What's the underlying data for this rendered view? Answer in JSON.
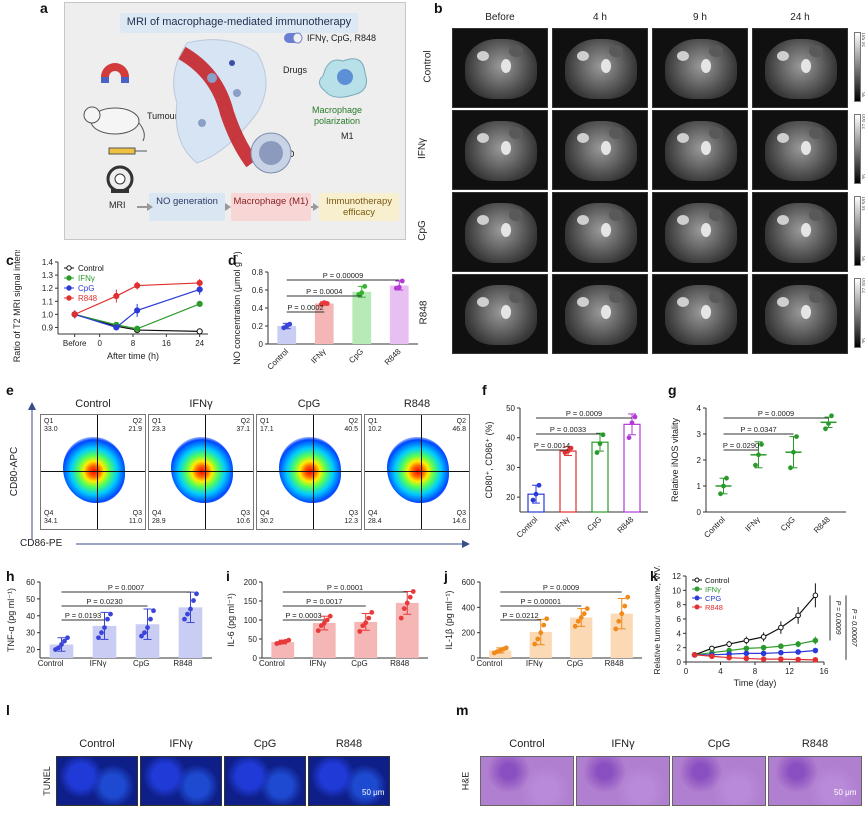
{
  "panel_labels": {
    "a": "a",
    "b": "b",
    "c": "c",
    "d": "d",
    "e": "e",
    "f": "f",
    "g": "g",
    "h": "h",
    "i": "i",
    "j": "j",
    "k": "k",
    "l": "l",
    "m": "m"
  },
  "panel_a": {
    "title": "MRI of macrophage-mediated immunotherapy",
    "drugs_label": "Drugs",
    "drugs_list": "IFNγ, CpG, R848",
    "tumour_label": "Tumour",
    "polarization_label": "Macrophage polarization",
    "m1_label": "M1",
    "no_label": "NO",
    "mri_label": "MRI",
    "box_no": "NO generation",
    "box_macrophage": "Macrophage (M1)",
    "box_immuno": "Immunotherapy efficacy",
    "colors": {
      "box_no": "#dbe6f3",
      "box_macrophage": "#f8d6d6",
      "box_immuno": "#f8efce",
      "title_box": "#dce9f4"
    }
  },
  "panel_b": {
    "columns": [
      "Before",
      "4 h",
      "9 h",
      "24 h"
    ],
    "rows": [
      "Control",
      "IFNγ",
      "CpG",
      "R848"
    ],
    "colorbar_labels": [
      "26,581",
      "27,000",
      "16,581",
      "27,000"
    ],
    "colorbar_bottom_labels": [
      "35",
      "35",
      "35",
      "35"
    ]
  },
  "chart_data": [
    {
      "id": "c",
      "type": "line",
      "title": "",
      "ylabel": "Ratio of T2 MRI signal intensity",
      "xlabel": "After time (h)",
      "x_tick_labels": [
        "Before",
        "0",
        "8",
        "16",
        "24"
      ],
      "ylim": [
        0.85,
        1.4
      ],
      "y_ticks": [
        0.9,
        1.0,
        1.1,
        1.2,
        1.3,
        1.4
      ],
      "x": [
        -6,
        4,
        9,
        24
      ],
      "series": [
        {
          "name": "Control",
          "color": "#111111",
          "values": [
            1.0,
            0.91,
            0.88,
            0.87
          ],
          "err": [
            0.03,
            0.02,
            0.02,
            0.01
          ]
        },
        {
          "name": "IFNγ",
          "color": "#2a9b2a",
          "values": [
            1.0,
            0.92,
            0.89,
            1.08
          ],
          "err": [
            0.03,
            0.02,
            0.02,
            0.01
          ]
        },
        {
          "name": "CpG",
          "color": "#2c3ad6",
          "values": [
            1.0,
            0.9,
            1.03,
            1.19
          ],
          "err": [
            0.03,
            0.02,
            0.05,
            0.04
          ]
        },
        {
          "name": "R848",
          "color": "#e03030",
          "values": [
            1.0,
            1.14,
            1.22,
            1.24
          ],
          "err": [
            0.03,
            0.05,
            0.03,
            0.03
          ]
        }
      ]
    },
    {
      "id": "d",
      "type": "bar",
      "ylabel": "NO concentration (μmol g⁻¹)",
      "categories": [
        "Control",
        "IFNγ",
        "CpG",
        "R848"
      ],
      "values": [
        0.2,
        0.45,
        0.58,
        0.65
      ],
      "err": [
        0.03,
        0.02,
        0.06,
        0.05
      ],
      "points": [
        [
          0.18,
          0.2,
          0.22
        ],
        [
          0.44,
          0.46,
          0.45
        ],
        [
          0.55,
          0.57,
          0.64
        ],
        [
          0.62,
          0.63,
          0.7
        ]
      ],
      "colors": [
        "#c9cdf3",
        "#f5b6b6",
        "#b7eab7",
        "#e8bff3"
      ],
      "dot_colors": [
        "#3a45d8",
        "#e83a3a",
        "#31b531",
        "#b43ad6"
      ],
      "ylim": [
        0,
        0.8
      ],
      "y_ticks": [
        0,
        0.2,
        0.4,
        0.6,
        0.8
      ],
      "significance": [
        {
          "from": 0,
          "to": 1,
          "label": "P = 0.0002"
        },
        {
          "from": 0,
          "to": 2,
          "label": "P = 0.0004"
        },
        {
          "from": 0,
          "to": 3,
          "label": "P = 0.00009"
        }
      ]
    },
    {
      "id": "f",
      "type": "bar",
      "ylabel": "CD80⁺, CD86⁺ (%)",
      "categories": [
        "Control",
        "IFNγ",
        "CpG",
        "R848"
      ],
      "values": [
        21,
        35.5,
        38.5,
        44.5
      ],
      "err": [
        3,
        1.5,
        3,
        3.5
      ],
      "points": [
        [
          19,
          21,
          24
        ],
        [
          35,
          35.5,
          36.5
        ],
        [
          35,
          38,
          41
        ],
        [
          40,
          45,
          47
        ]
      ],
      "colors": [
        "#ffffff",
        "#ffffff",
        "#ffffff",
        "#ffffff"
      ],
      "edge_colors": [
        "#2c3ad6",
        "#e03030",
        "#2a9b2a",
        "#b43ad6"
      ],
      "dot_colors": [
        "#2c3ad6",
        "#e03030",
        "#2a9b2a",
        "#b43ad6"
      ],
      "ylim": [
        15,
        50
      ],
      "y_ticks": [
        20,
        30,
        40,
        50
      ],
      "significance": [
        {
          "from": 0,
          "to": 1,
          "label": "P = 0.0014"
        },
        {
          "from": 0,
          "to": 2,
          "label": "P = 0.0033"
        },
        {
          "from": 0,
          "to": 3,
          "label": "P = 0.0009"
        }
      ]
    },
    {
      "id": "g",
      "type": "scatter",
      "ylabel": "Relative iNOS vitality",
      "categories": [
        "Control",
        "IFNγ",
        "CpG",
        "R848"
      ],
      "values": [
        1.0,
        2.2,
        2.3,
        3.45
      ],
      "err": [
        0.3,
        0.5,
        0.6,
        0.2
      ],
      "points": [
        [
          0.7,
          1.0,
          1.3
        ],
        [
          1.8,
          2.2,
          2.6
        ],
        [
          1.7,
          2.3,
          2.9
        ],
        [
          3.2,
          3.4,
          3.7
        ]
      ],
      "dot_colors": [
        "#2a9b2a",
        "#2a9b2a",
        "#2a9b2a",
        "#2a9b2a"
      ],
      "ylim": [
        0,
        4
      ],
      "y_ticks": [
        0,
        1,
        2,
        3,
        4
      ],
      "significance": [
        {
          "from": 0,
          "to": 1,
          "label": "P = 0.0290"
        },
        {
          "from": 0,
          "to": 2,
          "label": "P = 0.0347"
        },
        {
          "from": 0,
          "to": 3,
          "label": "P = 0.0009"
        }
      ]
    },
    {
      "id": "h",
      "type": "bar",
      "ylabel": "TNF-α (pg ml⁻¹)",
      "categories": [
        "Control",
        "IFNγ",
        "CpG",
        "R848"
      ],
      "values": [
        23,
        34,
        35,
        45
      ],
      "err": [
        4,
        8,
        9,
        9
      ],
      "points": [
        [
          20,
          21,
          23,
          25,
          27
        ],
        [
          27,
          30,
          33,
          38,
          41
        ],
        [
          28,
          30,
          33,
          38,
          43
        ],
        [
          38,
          41,
          44,
          49,
          53
        ]
      ],
      "colors": [
        "#c9cdf3",
        "#c9cdf3",
        "#c9cdf3",
        "#c9cdf3"
      ],
      "dot_colors": [
        "#3a45d8",
        "#3a45d8",
        "#3a45d8",
        "#3a45d8"
      ],
      "ylim": [
        15,
        60
      ],
      "y_ticks": [
        20,
        30,
        40,
        50,
        60
      ],
      "significance": [
        {
          "from": 0,
          "to": 1,
          "label": "P = 0.0193"
        },
        {
          "from": 0,
          "to": 2,
          "label": "P = 0.0230"
        },
        {
          "from": 0,
          "to": 3,
          "label": "P = 0.0007"
        }
      ]
    },
    {
      "id": "i",
      "type": "bar",
      "ylabel": "IL-6 (pg ml⁻¹)",
      "categories": [
        "Control",
        "IFNγ",
        "CpG",
        "R848"
      ],
      "values": [
        42,
        92,
        95,
        145
      ],
      "err": [
        5,
        18,
        22,
        30
      ],
      "points": [
        [
          38,
          40,
          42,
          44,
          47
        ],
        [
          72,
          85,
          92,
          100,
          110
        ],
        [
          70,
          85,
          93,
          105,
          120
        ],
        [
          105,
          130,
          145,
          160,
          175
        ]
      ],
      "colors": [
        "#f5b6b6",
        "#f5b6b6",
        "#f5b6b6",
        "#f5b6b6"
      ],
      "dot_colors": [
        "#e83a3a",
        "#e83a3a",
        "#e83a3a",
        "#e83a3a"
      ],
      "ylim": [
        0,
        200
      ],
      "y_ticks": [
        0,
        50,
        100,
        150,
        200
      ],
      "significance": [
        {
          "from": 0,
          "to": 1,
          "label": "P = 0.0003"
        },
        {
          "from": 0,
          "to": 2,
          "label": "P = 0.0017"
        },
        {
          "from": 0,
          "to": 3,
          "label": "P = 0.0001"
        }
      ]
    },
    {
      "id": "j",
      "type": "bar",
      "ylabel": "IL-1β (pg ml⁻¹)",
      "categories": [
        "Control",
        "IFNγ",
        "CpG",
        "R848"
      ],
      "values": [
        60,
        205,
        320,
        350
      ],
      "err": [
        20,
        100,
        70,
        120
      ],
      "points": [
        [
          40,
          50,
          60,
          70,
          80
        ],
        [
          110,
          150,
          200,
          260,
          310
        ],
        [
          250,
          290,
          320,
          350,
          390
        ],
        [
          230,
          290,
          350,
          410,
          480
        ]
      ],
      "colors": [
        "#fbd9b5",
        "#fbd9b5",
        "#fbd9b5",
        "#fbd9b5"
      ],
      "dot_colors": [
        "#f08a1a",
        "#f08a1a",
        "#f08a1a",
        "#f08a1a"
      ],
      "ylim": [
        0,
        600
      ],
      "y_ticks": [
        0,
        200,
        400,
        600
      ],
      "significance": [
        {
          "from": 0,
          "to": 1,
          "label": "P = 0.0212"
        },
        {
          "from": 0,
          "to": 2,
          "label": "P = 0.00001"
        },
        {
          "from": 0,
          "to": 3,
          "label": "P = 0.0009"
        }
      ]
    },
    {
      "id": "k",
      "type": "line",
      "ylabel": "Relative tumour volume, V/V₀",
      "xlabel": "Time (day)",
      "x": [
        1,
        3,
        5,
        7,
        9,
        11,
        13,
        15
      ],
      "x_ticks": [
        0,
        4,
        8,
        12,
        16
      ],
      "ylim": [
        0,
        12
      ],
      "y_ticks": [
        0,
        2,
        4,
        6,
        8,
        10,
        12
      ],
      "series": [
        {
          "name": "Control",
          "color": "#111111",
          "values": [
            1.0,
            1.9,
            2.5,
            3.0,
            3.5,
            4.8,
            6.5,
            9.3
          ]
        },
        {
          "name": "IFNγ",
          "color": "#2a9b2a",
          "values": [
            1.0,
            1.3,
            1.6,
            1.9,
            2.0,
            2.2,
            2.5,
            3.0
          ]
        },
        {
          "name": "CPG",
          "color": "#2c3ad6",
          "values": [
            1.0,
            1.0,
            1.1,
            1.2,
            1.2,
            1.3,
            1.4,
            1.6
          ]
        },
        {
          "name": "R848",
          "color": "#e03030",
          "values": [
            1.0,
            0.8,
            0.6,
            0.5,
            0.4,
            0.4,
            0.35,
            0.3
          ]
        }
      ],
      "annotations": [
        "P = 0.0009",
        "P = 0.00007"
      ]
    }
  ],
  "panel_e": {
    "columns": [
      "Control",
      "IFNγ",
      "CpG",
      "R848"
    ],
    "y_axis": "CD80-APC",
    "x_axis": "CD86-PE",
    "quadrants": [
      {
        "q1": "33.0",
        "q2": "21.9",
        "q3": "11.0",
        "q4": "34.1"
      },
      {
        "q1": "23.3",
        "q2": "37.1",
        "q3": "10.6",
        "q4": "28.9"
      },
      {
        "q1": "17.1",
        "q2": "40.5",
        "q3": "12.3",
        "q4": "30.2"
      },
      {
        "q1": "10.2",
        "q2": "46.8",
        "q3": "14.6",
        "q4": "28.4"
      }
    ],
    "q_names": {
      "q1": "Q1",
      "q2": "Q2",
      "q3": "Q3",
      "q4": "Q4"
    }
  },
  "panel_l": {
    "columns": [
      "Control",
      "IFNγ",
      "CpG",
      "R848"
    ],
    "row_label": "TUNEL",
    "scale": "50 μm"
  },
  "panel_m": {
    "columns": [
      "Control",
      "IFNγ",
      "CpG",
      "R848"
    ],
    "row_label": "H&E",
    "scale": "50 μm"
  }
}
